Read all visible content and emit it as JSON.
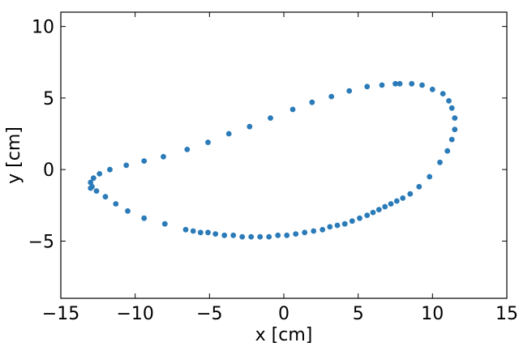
{
  "chart_data": {
    "type": "scatter",
    "xlabel": "x [cm]",
    "ylabel": "y [cm]",
    "xlim": [
      -15,
      15
    ],
    "ylim": [
      -9,
      11
    ],
    "xticks": [
      -15,
      -10,
      -5,
      0,
      5,
      10,
      15
    ],
    "yticks": [
      -5,
      0,
      5,
      10
    ],
    "xtick_labels": [
      "−15",
      "−10",
      "−5",
      "0",
      "5",
      "10",
      "15"
    ],
    "ytick_labels": [
      "−5",
      "0",
      "5",
      "10"
    ],
    "grid": false,
    "marker_color": "#2b7bb9",
    "series": [
      {
        "points": [
          [
            -13.0,
            -0.9
          ],
          [
            -12.9,
            -1.2
          ],
          [
            -12.8,
            -0.6
          ],
          [
            -12.4,
            -0.3
          ],
          [
            -11.7,
            0.0
          ],
          [
            -10.6,
            0.3
          ],
          [
            -9.4,
            0.6
          ],
          [
            -8.1,
            0.9
          ],
          [
            -6.5,
            1.4
          ],
          [
            -5.1,
            1.9
          ],
          [
            -3.7,
            2.5
          ],
          [
            -2.3,
            3.0
          ],
          [
            -0.9,
            3.6
          ],
          [
            0.6,
            4.2
          ],
          [
            1.9,
            4.7
          ],
          [
            3.2,
            5.1
          ],
          [
            4.4,
            5.5
          ],
          [
            5.6,
            5.8
          ],
          [
            6.6,
            5.9
          ],
          [
            7.5,
            6.0
          ],
          [
            7.8,
            6.0
          ],
          [
            8.6,
            6.0
          ],
          [
            9.3,
            5.9
          ],
          [
            10.0,
            5.6
          ],
          [
            10.7,
            5.3
          ],
          [
            11.1,
            4.8
          ],
          [
            11.3,
            4.3
          ],
          [
            11.5,
            3.6
          ],
          [
            11.5,
            2.8
          ],
          [
            11.3,
            2.1
          ],
          [
            11.0,
            1.3
          ],
          [
            10.5,
            0.5
          ],
          [
            9.8,
            -0.5
          ],
          [
            9.1,
            -1.2
          ],
          [
            8.5,
            -1.7
          ],
          [
            8.0,
            -2.0
          ],
          [
            7.6,
            -2.2
          ],
          [
            7.2,
            -2.4
          ],
          [
            6.8,
            -2.6
          ],
          [
            6.4,
            -2.8
          ],
          [
            6.0,
            -3.0
          ],
          [
            5.6,
            -3.2
          ],
          [
            5.1,
            -3.4
          ],
          [
            4.6,
            -3.6
          ],
          [
            4.1,
            -3.8
          ],
          [
            3.6,
            -3.9
          ],
          [
            3.1,
            -4.0
          ],
          [
            2.6,
            -4.2
          ],
          [
            2.0,
            -4.3
          ],
          [
            1.4,
            -4.4
          ],
          [
            0.8,
            -4.5
          ],
          [
            0.2,
            -4.6
          ],
          [
            -0.4,
            -4.6
          ],
          [
            -1.0,
            -4.7
          ],
          [
            -1.6,
            -4.7
          ],
          [
            -2.2,
            -4.7
          ],
          [
            -2.8,
            -4.7
          ],
          [
            -3.4,
            -4.6
          ],
          [
            -4.0,
            -4.6
          ],
          [
            -4.6,
            -4.5
          ],
          [
            -5.1,
            -4.4
          ],
          [
            -5.6,
            -4.4
          ],
          [
            -6.1,
            -4.3
          ],
          [
            -6.6,
            -4.2
          ],
          [
            -8.0,
            -3.8
          ],
          [
            -9.4,
            -3.4
          ],
          [
            -10.5,
            -2.9
          ],
          [
            -11.3,
            -2.4
          ],
          [
            -12.0,
            -1.9
          ],
          [
            -12.6,
            -1.5
          ],
          [
            -13.0,
            -1.3
          ]
        ]
      }
    ]
  }
}
